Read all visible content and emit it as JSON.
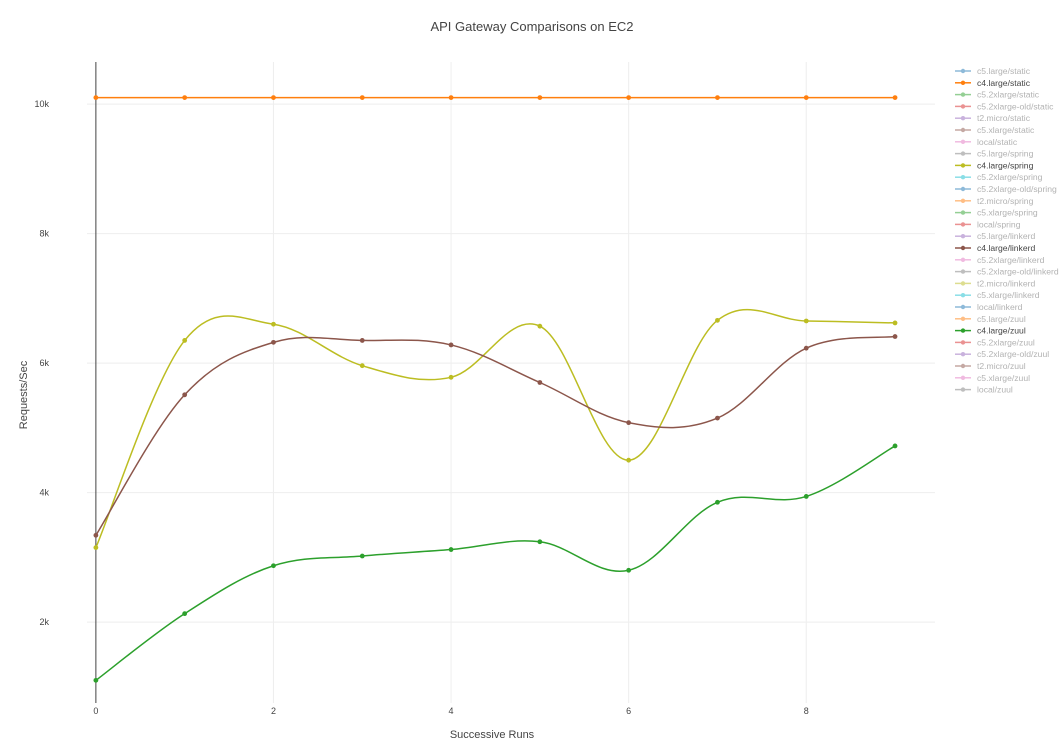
{
  "chart_data": {
    "type": "line",
    "title": "API Gateway Comparisons on EC2",
    "xlabel": "Successive Runs",
    "ylabel": "Requests/Sec",
    "xlim": [
      -0.1,
      9.45
    ],
    "ylim": [
      750,
      10650
    ],
    "x_ticks": [
      0,
      2,
      4,
      6,
      8
    ],
    "x_tick_labels": [
      "0",
      "2",
      "4",
      "6",
      "8"
    ],
    "y_ticks": [
      2000,
      4000,
      6000,
      8000,
      10000
    ],
    "y_tick_labels": [
      "2k",
      "4k",
      "6k",
      "8k",
      "10k"
    ],
    "grid": true,
    "legend_position": "right",
    "x": [
      0,
      1,
      2,
      3,
      4,
      5,
      6,
      7,
      8,
      9
    ],
    "series": [
      {
        "name": "c5.large/static",
        "color": "#1f77b4",
        "visible": false
      },
      {
        "name": "c4.large/static",
        "color": "#ff7f0e",
        "visible": true,
        "values": [
          10100,
          10100,
          10100,
          10100,
          10100,
          10100,
          10100,
          10100,
          10100,
          10100
        ]
      },
      {
        "name": "c5.2xlarge/static",
        "color": "#2ca02c",
        "visible": false
      },
      {
        "name": "c5.2xlarge-old/static",
        "color": "#d62728",
        "visible": false
      },
      {
        "name": "t2.micro/static",
        "color": "#9467bd",
        "visible": false
      },
      {
        "name": "c5.xlarge/static",
        "color": "#8c564b",
        "visible": false
      },
      {
        "name": "local/static",
        "color": "#e377c2",
        "visible": false
      },
      {
        "name": "c5.large/spring",
        "color": "#7f7f7f",
        "visible": false
      },
      {
        "name": "c4.large/spring",
        "color": "#bcbd22",
        "visible": true,
        "values": [
          3150,
          6350,
          6600,
          5960,
          5780,
          6570,
          4500,
          6660,
          6650,
          6620
        ]
      },
      {
        "name": "c5.2xlarge/spring",
        "color": "#17becf",
        "visible": false
      },
      {
        "name": "c5.2xlarge-old/spring",
        "color": "#1f77b4",
        "visible": false
      },
      {
        "name": "t2.micro/spring",
        "color": "#ff7f0e",
        "visible": false
      },
      {
        "name": "c5.xlarge/spring",
        "color": "#2ca02c",
        "visible": false
      },
      {
        "name": "local/spring",
        "color": "#d62728",
        "visible": false
      },
      {
        "name": "c5.large/linkerd",
        "color": "#9467bd",
        "visible": false
      },
      {
        "name": "c4.large/linkerd",
        "color": "#8c564b",
        "visible": true,
        "values": [
          3340,
          5510,
          6320,
          6350,
          6280,
          5700,
          5080,
          5150,
          6230,
          6410
        ]
      },
      {
        "name": "c5.2xlarge/linkerd",
        "color": "#e377c2",
        "visible": false
      },
      {
        "name": "c5.2xlarge-old/linkerd",
        "color": "#7f7f7f",
        "visible": false
      },
      {
        "name": "t2.micro/linkerd",
        "color": "#bcbd22",
        "visible": false
      },
      {
        "name": "c5.xlarge/linkerd",
        "color": "#17becf",
        "visible": false
      },
      {
        "name": "local/linkerd",
        "color": "#1f77b4",
        "visible": false
      },
      {
        "name": "c5.large/zuul",
        "color": "#ff7f0e",
        "visible": false
      },
      {
        "name": "c4.large/zuul",
        "color": "#2ca02c",
        "visible": true,
        "values": [
          1100,
          2130,
          2870,
          3020,
          3120,
          3240,
          2800,
          3850,
          3940,
          4720
        ]
      },
      {
        "name": "c5.2xlarge/zuul",
        "color": "#d62728",
        "visible": false
      },
      {
        "name": "c5.2xlarge-old/zuul",
        "color": "#9467bd",
        "visible": false
      },
      {
        "name": "t2.micro/zuul",
        "color": "#8c564b",
        "visible": false
      },
      {
        "name": "c5.xlarge/zuul",
        "color": "#e377c2",
        "visible": false
      },
      {
        "name": "local/zuul",
        "color": "#7f7f7f",
        "visible": false
      }
    ]
  }
}
